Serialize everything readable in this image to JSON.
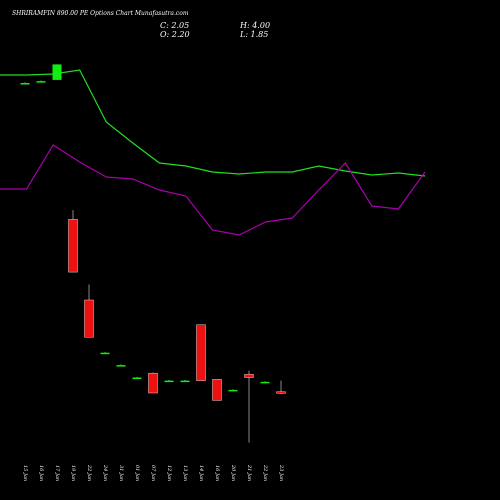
{
  "title": "SHRIRAMFIN 890.00 PE Options Chart Munafasutra.com",
  "ohlc": {
    "C": "C: 2.05",
    "O": "O: 2.20",
    "H": "H: 4.00",
    "L": "L: 1.85"
  },
  "colors": {
    "background": "#000000",
    "green": "#22dd22",
    "purple": "#aa00aa",
    "up": "#11ee11",
    "down": "#ee1111",
    "text": "#ffffff"
  },
  "chart_data": {
    "type": "candlestick",
    "dates": [
      "15 Jan",
      "16 Jan",
      "17 Jan",
      "20 Jan",
      "23 Jan",
      "24 Jan",
      "27 Jan",
      "31 Jan",
      "01 Feb",
      "03 Feb",
      "05 Feb",
      "06 Feb",
      "07 Feb",
      "08 Feb",
      "10 Feb",
      "13 Feb",
      "14 Feb"
    ],
    "x_tick_labels": [
      "15 Jan",
      "16 Jan",
      "17 Jan",
      "19 Jan",
      "22 Jan",
      "24 Jan",
      "31 Jan",
      "01 Jan",
      "07 Jan",
      "12 Jan",
      "13 Jan",
      "14 Jan",
      "16 Jan",
      "20 Jan",
      "21 Jan",
      "22 Jan",
      "23 Jan"
    ],
    "candles": [
      {
        "o": 52.0,
        "h": 52.1,
        "l": 51.9,
        "c": 52.0
      },
      {
        "o": 52.3,
        "h": 52.4,
        "l": 52.2,
        "c": 52.3
      },
      {
        "o": 52.5,
        "h": 55.0,
        "l": 52.5,
        "c": 55.0
      },
      {
        "o": 30.0,
        "h": 31.5,
        "l": 21.5,
        "c": 21.5
      },
      {
        "o": 17.0,
        "h": 19.5,
        "l": 11.0,
        "c": 11.0
      },
      {
        "o": 8.5,
        "h": 8.6,
        "l": 8.4,
        "c": 8.5
      },
      {
        "o": 6.5,
        "h": 6.6,
        "l": 6.4,
        "c": 6.5
      },
      {
        "o": 4.5,
        "h": 4.6,
        "l": 4.4,
        "c": 4.5
      },
      {
        "o": 5.2,
        "h": 5.3,
        "l": 2.0,
        "c": 2.0
      },
      {
        "o": 4.0,
        "h": 4.1,
        "l": 3.9,
        "c": 4.0
      },
      {
        "o": 4.0,
        "h": 4.1,
        "l": 3.9,
        "c": 4.0
      },
      {
        "o": 13.0,
        "h": 13.0,
        "l": 4.0,
        "c": 4.0
      },
      {
        "o": 4.2,
        "h": 4.2,
        "l": 1.4,
        "c": 0.8
      },
      {
        "o": 2.5,
        "h": 2.6,
        "l": 2.4,
        "c": 2.5
      },
      {
        "o": 5.0,
        "h": 5.6,
        "l": -6.0,
        "c": 4.5
      },
      {
        "o": 3.8,
        "h": 3.9,
        "l": 3.7,
        "c": 3.8
      },
      {
        "o": 2.2,
        "h": 4.0,
        "l": 1.85,
        "c": 2.05
      }
    ],
    "green_line": [
      75,
      75,
      74,
      70,
      122,
      143,
      163,
      166,
      172,
      174,
      172,
      172,
      166,
      171,
      175,
      173,
      176
    ],
    "purple_line": [
      189,
      189,
      145,
      162,
      177,
      179,
      190,
      196,
      230,
      235,
      222,
      218,
      190,
      163,
      206,
      209,
      172
    ],
    "ylim": [
      -8,
      60
    ],
    "grid": false
  }
}
